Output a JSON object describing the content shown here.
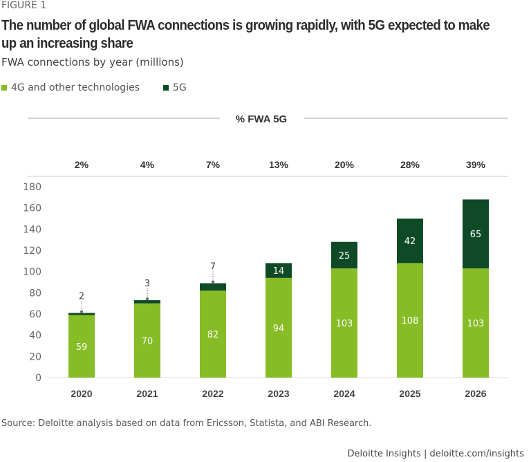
{
  "figure_label": "FIGURE 1",
  "source": "Source: Deloitte analysis based on data from Ericsson, Statista, and ABI Research.",
  "footer": "Deloitte Insights | deloitte.com/insights",
  "chart_data": {
    "type": "bar",
    "stacked": true,
    "title": "The number of global FWA connections is growing rapidly, with 5G expected to make up an increasing share",
    "subtitle": "FWA connections by year (millions)",
    "categories": [
      "2020",
      "2021",
      "2022",
      "2023",
      "2024",
      "2025",
      "2026"
    ],
    "series": [
      {
        "name": "4G and other technologies",
        "color": "#86bc25",
        "values": [
          59,
          70,
          82,
          94,
          103,
          108,
          103
        ]
      },
      {
        "name": "5G",
        "color": "#0f4a27",
        "values": [
          2,
          3,
          7,
          14,
          25,
          42,
          65
        ]
      }
    ],
    "percent_row": {
      "label": "% FWA 5G",
      "values": [
        "2%",
        "4%",
        "7%",
        "13%",
        "20%",
        "28%",
        "39%"
      ]
    },
    "yticks": [
      0,
      20,
      40,
      60,
      80,
      100,
      120,
      140,
      160,
      180
    ],
    "ylim": [
      0,
      180
    ],
    "grid": false,
    "legend_position": "top-left"
  }
}
